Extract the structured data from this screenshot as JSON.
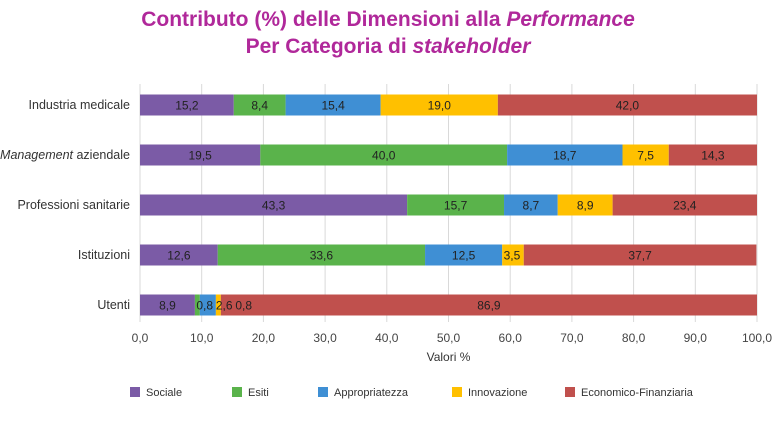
{
  "title": {
    "line1_prefix": "Contributo (%) delle Dimensioni alla ",
    "line1_emph": "Performance",
    "line2_prefix": "Per Categoria di ",
    "line2_emph": "stakeholder"
  },
  "chart_data": {
    "type": "bar",
    "orientation": "horizontal",
    "stacked": true,
    "categories": [
      {
        "label": "Industria medicale",
        "emph": ""
      },
      {
        "label": " aziendale",
        "emph": "Management"
      },
      {
        "label": "Professioni sanitarie",
        "emph": ""
      },
      {
        "label": "Istituzioni",
        "emph": ""
      },
      {
        "label": "Utenti",
        "emph": ""
      }
    ],
    "series": [
      {
        "name": "Sociale",
        "color": "#7b5ba6",
        "values": [
          15.2,
          19.5,
          43.3,
          12.6,
          8.9
        ],
        "labels": [
          "15,2",
          "19,5",
          "43,3",
          "12,6",
          "8,9"
        ]
      },
      {
        "name": "Esiti",
        "color": "#5ab34b",
        "values": [
          8.4,
          40.0,
          15.7,
          33.6,
          0.8
        ],
        "labels": [
          "8,4",
          "40,0",
          "15,7",
          "33,6",
          "0,8"
        ]
      },
      {
        "name": "Appropriatezza",
        "color": "#3f8fd4",
        "values": [
          15.4,
          18.7,
          8.7,
          12.5,
          2.6
        ],
        "labels": [
          "15,4",
          "18,7",
          "8,7",
          "12,5",
          "2,6"
        ]
      },
      {
        "name": "Innovazione",
        "color": "#ffc000",
        "values": [
          19.0,
          7.5,
          8.9,
          3.5,
          0.8
        ],
        "labels": [
          "19,0",
          "7,5",
          "8,9",
          "3,5",
          "0,8"
        ]
      },
      {
        "name": "Economico-Finanziaria",
        "color": "#c0504d",
        "values": [
          42.0,
          14.3,
          23.4,
          37.7,
          86.9
        ],
        "labels": [
          "42,0",
          "14,3",
          "23,4",
          "37,7",
          "86,9"
        ]
      }
    ],
    "xlim": [
      0,
      100
    ],
    "xticks": [
      0,
      10,
      20,
      30,
      40,
      50,
      60,
      70,
      80,
      90,
      100
    ],
    "xtick_labels": [
      "0,0",
      "10,0",
      "20,0",
      "30,0",
      "40,0",
      "50,0",
      "60,0",
      "70,0",
      "80,0",
      "90,0",
      "100,0"
    ],
    "xlabel": "Valori %",
    "grid": true,
    "legend_position": "bottom"
  }
}
